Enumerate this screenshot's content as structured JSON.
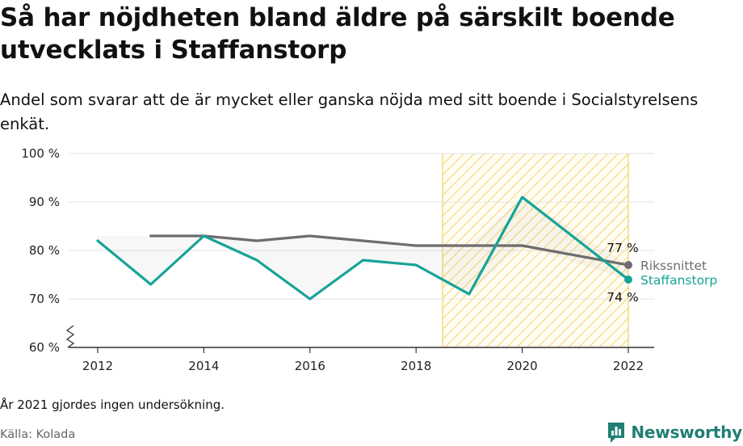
{
  "title": "Så har nöjdheten bland äldre på särskilt boende utvecklats i Staffanstorp",
  "subtitle": "Andel som svarar att de är mycket eller ganska nöjda med sitt boende i Socialstyrelsens enkät.",
  "footnote": "År 2021 gjordes ingen undersökning.",
  "source": "Källa: Kolada",
  "brand": {
    "name": "Newsworthy",
    "color": "#1f7f74"
  },
  "chart_data": {
    "type": "line",
    "title": "Så har nöjdheten bland äldre på särskilt boende utvecklats i Staffanstorp",
    "x_ticks": [
      "2012",
      "2014",
      "2016",
      "2018",
      "2020",
      "2022"
    ],
    "y_ticks": [
      "60 %",
      "70 %",
      "80 %",
      "90 %",
      "100 %"
    ],
    "ylim": [
      60,
      100
    ],
    "xlim": [
      2011.5,
      2022.5
    ],
    "y_axis_broken": true,
    "grid": true,
    "highlight_range": [
      2018.5,
      2022
    ],
    "series": [
      {
        "name": "Rikssnittet",
        "color": "#6e6c70",
        "x": [
          2013,
          2014,
          2015,
          2016,
          2017,
          2018,
          2019,
          2020,
          2022
        ],
        "values": [
          83,
          83,
          82,
          83,
          82,
          81,
          81,
          81,
          77
        ],
        "end_label": "77 %"
      },
      {
        "name": "Staffanstorp",
        "color": "#17a398",
        "x": [
          2012,
          2013,
          2014,
          2015,
          2016,
          2017,
          2018,
          2019,
          2020,
          2022
        ],
        "values": [
          82,
          73,
          83,
          78,
          70,
          78,
          77,
          71,
          91,
          74
        ],
        "end_label": "74 %"
      }
    ]
  }
}
